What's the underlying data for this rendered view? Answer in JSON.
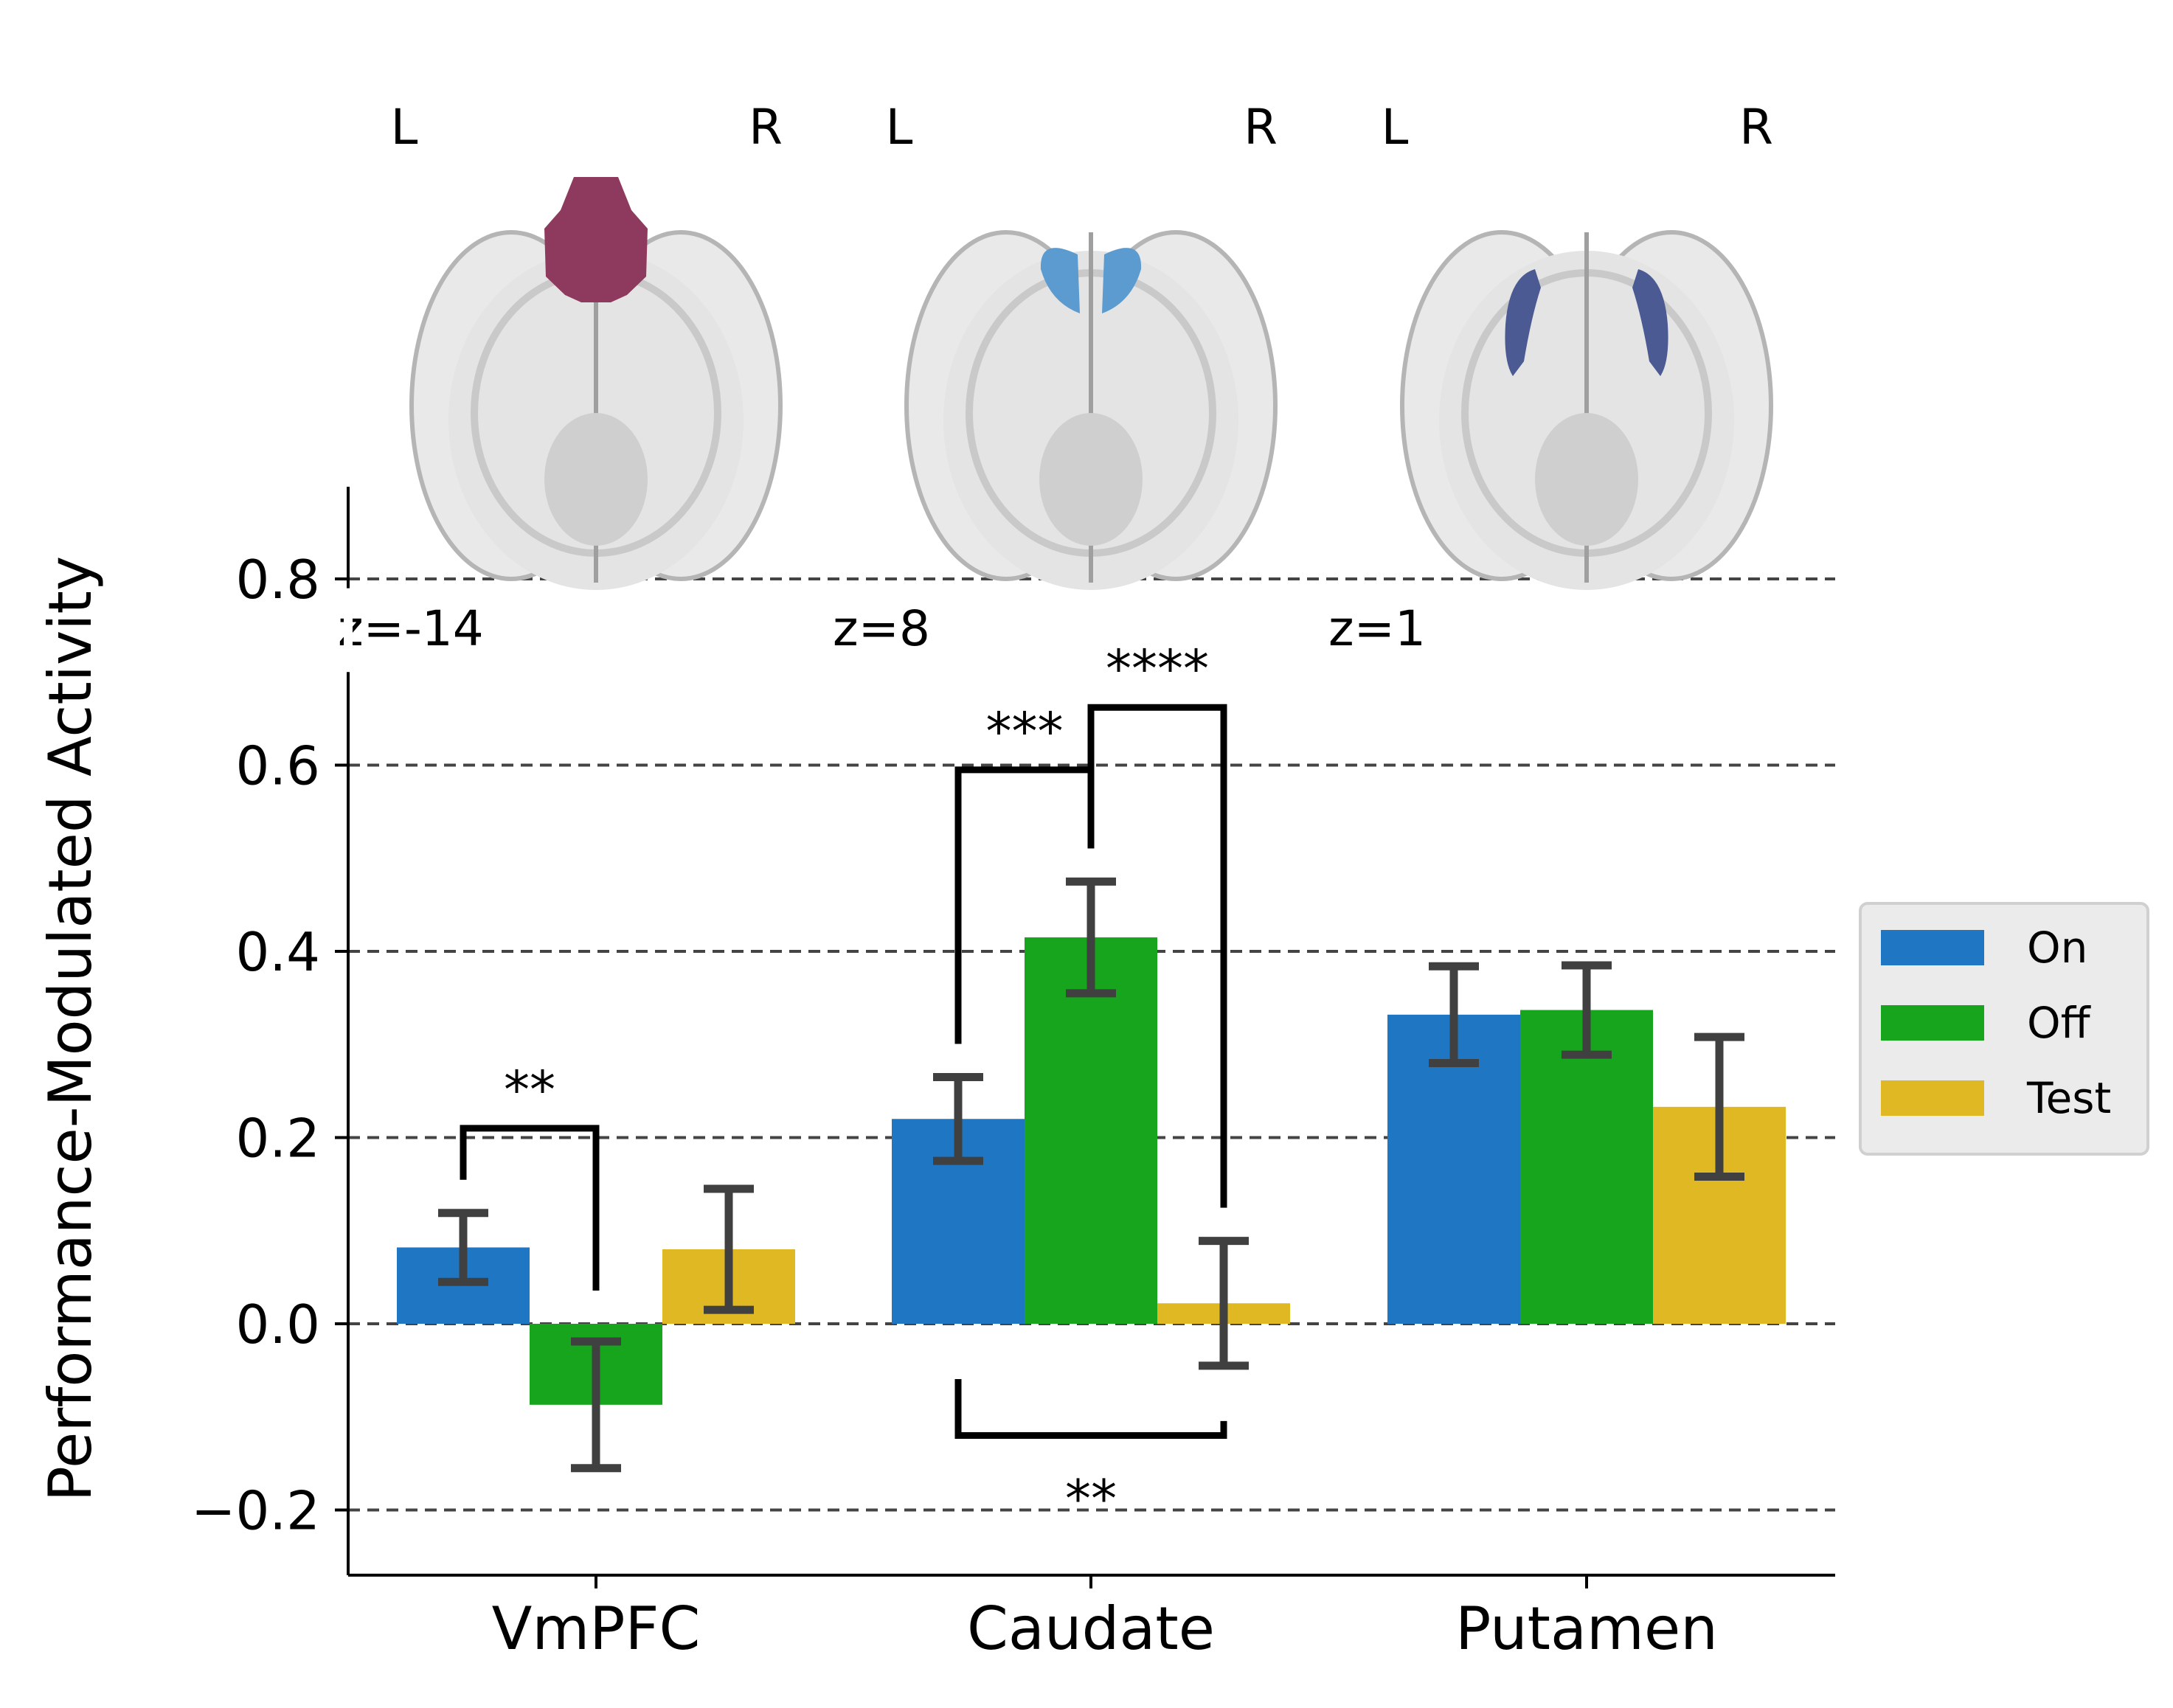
{
  "chart_data": {
    "type": "bar",
    "ylabel": "Performance-Modulated Activity",
    "xlabel": "",
    "categories": [
      "VmPFC",
      "Caudate",
      "Putamen"
    ],
    "series": [
      {
        "name": "On",
        "color": "#1f77c4",
        "values": [
          0.082,
          0.22,
          0.332
        ],
        "error": [
          0.037,
          0.045,
          0.052
        ]
      },
      {
        "name": "Off",
        "color": "#18a51e",
        "values": [
          -0.087,
          0.415,
          0.337
        ],
        "error": [
          0.068,
          0.06,
          0.048
        ]
      },
      {
        "name": "Test",
        "color": "#dfb824",
        "values": [
          0.08,
          0.022,
          0.233
        ],
        "error": [
          0.065,
          0.067,
          0.075
        ]
      }
    ],
    "ylim": [
      -0.27,
      0.8
    ],
    "yticks": [
      -0.2,
      0.0,
      0.2,
      0.4,
      0.6,
      0.8
    ],
    "ytick_labels": [
      "−0.2",
      "0.0",
      "0.2",
      "0.4",
      "0.6",
      "0.8"
    ],
    "grid": "horizontal dashed",
    "legend_position": "right",
    "significance": [
      {
        "category": "VmPFC",
        "from": "On",
        "to": "Off",
        "label": "**",
        "level": 0.21
      },
      {
        "category": "Caudate",
        "from": "On",
        "to": "Off",
        "label": "***",
        "level": 0.595
      },
      {
        "category": "Caudate",
        "from": "Off",
        "to": "Test",
        "label": "****",
        "level": 0.662
      },
      {
        "category": "Caudate",
        "from": "On",
        "to": "Test",
        "label": "**",
        "level": -0.12
      }
    ],
    "brain_slices": [
      {
        "region": "VmPFC",
        "left_label": "L",
        "right_label": "R",
        "z_label": "z=-14",
        "roi_color": "#8e3a5e"
      },
      {
        "region": "Caudate",
        "left_label": "L",
        "right_label": "R",
        "z_label": "z=8",
        "roi_color": "#5b9bd0"
      },
      {
        "region": "Putamen",
        "left_label": "L",
        "right_label": "R",
        "z_label": "z=1",
        "roi_color": "#4b5a92"
      }
    ]
  }
}
